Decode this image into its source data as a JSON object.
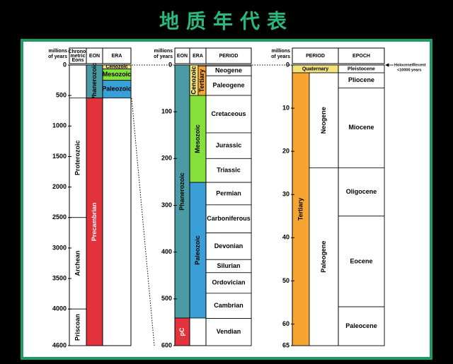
{
  "title": "地质年代表",
  "annotation": [
    "Holocene/Recent",
    "<10000 years"
  ],
  "panels": [
    {
      "axis_label": [
        "millions",
        "of years"
      ],
      "ylim": [
        0,
        4600
      ],
      "yticks": [
        0,
        500,
        1000,
        1500,
        2000,
        2500,
        3000,
        3500,
        4000,
        4600
      ],
      "headers": [
        [
          "Chrono-",
          "metric",
          "Eons"
        ],
        [
          "EON"
        ],
        [
          "ERA"
        ]
      ],
      "columns": [
        {
          "units": [
            {
              "label": "Proterozoic",
              "start": 541,
              "end": 2500,
              "color": "#ffffff"
            },
            {
              "label": "Archean",
              "start": 2500,
              "end": 4000,
              "color": "#ffffff"
            },
            {
              "label": "Priscoan",
              "start": 4000,
              "end": 4600,
              "color": "#ffffff"
            }
          ]
        },
        {
          "units": [
            {
              "label": "Phanerozoic",
              "start": 0,
              "end": 541,
              "color": "#4b9ba6"
            },
            {
              "label": "Precambrian",
              "start": 541,
              "end": 4600,
              "color": "#e2323c"
            }
          ]
        },
        {
          "units": [
            {
              "label": "Cenozoic",
              "start": 0,
              "end": 65,
              "color": "#f4e27c"
            },
            {
              "label": "Mesozoic",
              "start": 65,
              "end": 251,
              "color": "#86e03c"
            },
            {
              "label": "Paleozoic",
              "start": 251,
              "end": 541,
              "color": "#3a9fd6"
            }
          ]
        }
      ]
    },
    {
      "axis_label": [
        "millions",
        "of years"
      ],
      "ylim": [
        0,
        600
      ],
      "yticks": [
        0,
        100,
        200,
        300,
        400,
        500,
        600
      ],
      "headers": [
        [
          "EON"
        ],
        [
          "ERA"
        ],
        [
          "PERIOD"
        ]
      ],
      "columns": [
        {
          "units": [
            {
              "label": "Phanerozoic",
              "start": 0,
              "end": 541,
              "color": "#4b9ba6"
            },
            {
              "label": "pC",
              "start": 541,
              "end": 600,
              "color": "#e2323c"
            }
          ]
        },
        {
          "units": [
            {
              "label": "Mesozoic",
              "start": 65,
              "end": 251,
              "color": "#86e03c"
            },
            {
              "label": "Paleozoic",
              "start": 251,
              "end": 541,
              "color": "#3a9fd6"
            }
          ]
        },
        {
          "units": [
            {
              "label": "Cenozoic",
              "start": 0,
              "end": 65,
              "color": "#f4e27c"
            }
          ]
        },
        {
          "units": [
            {
              "label": "Tertiary",
              "start": 2,
              "end": 65,
              "color": "#f6a533"
            }
          ]
        },
        {
          "units": [
            {
              "label": "Neogene",
              "start": 2,
              "end": 23,
              "color": "#ffffff"
            },
            {
              "label": "Paleogene",
              "start": 23,
              "end": 65,
              "color": "#ffffff"
            },
            {
              "label": "Cretaceous",
              "start": 65,
              "end": 145,
              "color": "#ffffff"
            },
            {
              "label": "Jurassic",
              "start": 145,
              "end": 200,
              "color": "#ffffff"
            },
            {
              "label": "Triassic",
              "start": 200,
              "end": 251,
              "color": "#ffffff"
            },
            {
              "label": "Permian",
              "start": 251,
              "end": 299,
              "color": "#ffffff"
            },
            {
              "label": "Carboniferous",
              "start": 299,
              "end": 359,
              "color": "#ffffff"
            },
            {
              "label": "Devonian",
              "start": 359,
              "end": 416,
              "color": "#ffffff"
            },
            {
              "label": "Silurian",
              "start": 416,
              "end": 444,
              "color": "#ffffff"
            },
            {
              "label": "Ordovician",
              "start": 444,
              "end": 488,
              "color": "#ffffff"
            },
            {
              "label": "Cambrian",
              "start": 488,
              "end": 542,
              "color": "#ffffff"
            },
            {
              "label": "Vendian",
              "start": 542,
              "end": 600,
              "color": "#ffffff"
            }
          ]
        }
      ]
    },
    {
      "axis_label": [
        "millions",
        "of years"
      ],
      "ylim": [
        0,
        65
      ],
      "yticks": [
        0,
        10,
        20,
        30,
        40,
        50,
        60,
        65
      ],
      "headers": [
        [
          "PERIOD"
        ],
        [
          "EPOCH"
        ]
      ],
      "columns": [
        {
          "units": [
            {
              "label": "Quaternary",
              "start": 0,
              "end": 1.8,
              "color": "#f4e27c"
            }
          ]
        },
        {
          "units": [
            {
              "label": "Tertiary",
              "start": 1.8,
              "end": 65,
              "color": "#f6a533"
            }
          ]
        },
        {
          "units": [
            {
              "label": "Neogene",
              "start": 1.8,
              "end": 23.8,
              "color": "#ffffff"
            },
            {
              "label": "Paleogene",
              "start": 23.8,
              "end": 65,
              "color": "#ffffff"
            }
          ]
        },
        {
          "units": [
            {
              "label": "Pleistocene",
              "start": 0.01,
              "end": 1.8,
              "color": "#ffffff"
            },
            {
              "label": "Pliocene",
              "start": 1.8,
              "end": 5.3,
              "color": "#ffffff"
            },
            {
              "label": "Miocene",
              "start": 5.3,
              "end": 23.8,
              "color": "#ffffff"
            },
            {
              "label": "Oligocene",
              "start": 23.8,
              "end": 35,
              "color": "#ffffff"
            },
            {
              "label": "Eocene",
              "start": 35,
              "end": 56,
              "color": "#ffffff"
            },
            {
              "label": "Paleocene",
              "start": 56,
              "end": 65,
              "color": "#ffffff"
            }
          ]
        }
      ]
    }
  ]
}
